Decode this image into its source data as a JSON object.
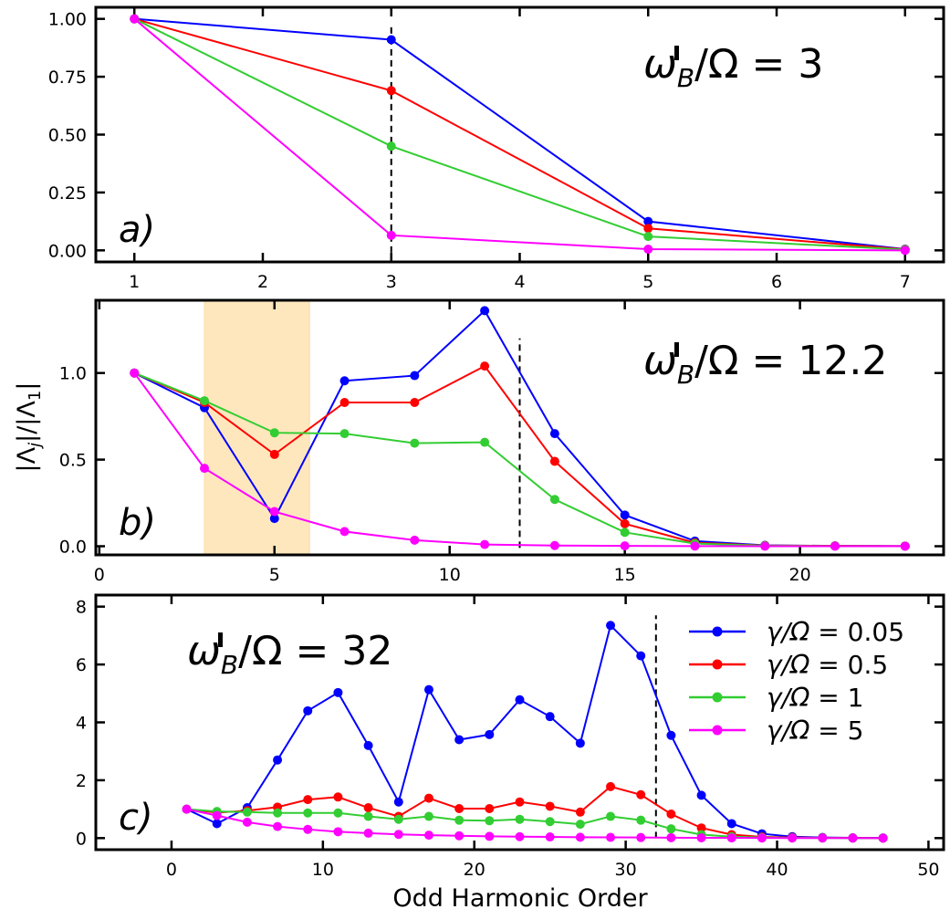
{
  "colors": {
    "blue": "#0000ff",
    "red": "#ff0000",
    "green": "#32cd32",
    "magenta": "#ff00ff",
    "band": "#ffe0a8"
  },
  "figure": {
    "ylabel_left": "|Λ",
    "ylabel_sub": "j",
    "ylabel_mid": "|/|Λ",
    "ylabel_sub2": "1",
    "ylabel_right": "|",
    "xlabel": "Odd Harmonic Order"
  },
  "legend": {
    "label_prefix": "γ/Ω =",
    "entries": [
      {
        "name": "0.05",
        "color": "#0000ff"
      },
      {
        "name": "0.5",
        "color": "#ff0000"
      },
      {
        "name": "1",
        "color": "#32cd32"
      },
      {
        "name": "5",
        "color": "#ff00ff"
      }
    ]
  },
  "chart_data": [
    {
      "type": "line",
      "panel_label": "a)",
      "annotation": {
        "lhs": "ω",
        "sub": "B",
        "mid": "/Ω = ",
        "value": "3"
      },
      "xlim": [
        0.7,
        7.3
      ],
      "ylim": [
        -0.05,
        1.05
      ],
      "xticks": [
        1,
        2,
        3,
        4,
        5,
        6,
        7
      ],
      "xtick_labels": [
        "1",
        "2",
        "3",
        "4",
        "5",
        "6",
        "7"
      ],
      "yticks": [
        0.0,
        0.25,
        0.5,
        0.75,
        1.0
      ],
      "ytick_labels": [
        "0.00",
        "0.25",
        "0.50",
        "0.75",
        "1.00"
      ],
      "cutoff_line": {
        "x": 3,
        "y_range": [
          -0.01,
          0.98
        ]
      },
      "x": [
        1,
        3,
        5,
        7
      ],
      "series": [
        {
          "name": "γ/Ω = 0.05",
          "color": "#0000ff",
          "values": [
            1.0,
            0.91,
            0.125,
            0.005
          ]
        },
        {
          "name": "γ/Ω = 0.5",
          "color": "#ff0000",
          "values": [
            1.0,
            0.69,
            0.095,
            0.004
          ]
        },
        {
          "name": "γ/Ω = 1",
          "color": "#32cd32",
          "values": [
            1.0,
            0.45,
            0.06,
            0.003
          ]
        },
        {
          "name": "γ/Ω = 5",
          "color": "#ff00ff",
          "values": [
            1.0,
            0.065,
            0.005,
            0.0
          ]
        }
      ]
    },
    {
      "type": "line",
      "panel_label": "b)",
      "annotation": {
        "lhs": "ω",
        "sub": "B",
        "mid": "/Ω = ",
        "value": "12.2"
      },
      "xlim": [
        -0.1,
        24.1
      ],
      "ylim": [
        -0.05,
        1.42
      ],
      "xticks": [
        0,
        5,
        10,
        15,
        20
      ],
      "xtick_labels": [
        "0",
        "5",
        "10",
        "15",
        "20"
      ],
      "yticks": [
        0.0,
        0.5,
        1.0
      ],
      "ytick_labels": [
        "0.0",
        "0.5",
        "1.0"
      ],
      "shaded_band": {
        "x_range": [
          3,
          6
        ]
      },
      "cutoff_line": {
        "x": 12,
        "y_range": [
          -0.01,
          1.2
        ]
      },
      "x": [
        1,
        3,
        5,
        7,
        9,
        11,
        13,
        15,
        17,
        19,
        21,
        23
      ],
      "series": [
        {
          "name": "γ/Ω = 0.05",
          "color": "#0000ff",
          "values": [
            1.0,
            0.8,
            0.16,
            0.955,
            0.985,
            1.36,
            0.65,
            0.18,
            0.03,
            0.005,
            0.002,
            0.001
          ]
        },
        {
          "name": "γ/Ω = 0.5",
          "color": "#ff0000",
          "values": [
            1.0,
            0.83,
            0.53,
            0.83,
            0.83,
            1.04,
            0.49,
            0.13,
            0.02,
            0.004,
            0.002,
            0.001
          ]
        },
        {
          "name": "γ/Ω = 1",
          "color": "#32cd32",
          "values": [
            1.0,
            0.84,
            0.655,
            0.65,
            0.595,
            0.6,
            0.27,
            0.08,
            0.015,
            0.003,
            0.001,
            0.0
          ]
        },
        {
          "name": "γ/Ω = 5",
          "color": "#ff00ff",
          "values": [
            1.0,
            0.45,
            0.2,
            0.085,
            0.035,
            0.01,
            0.004,
            0.002,
            0.001,
            0.0,
            0.0,
            0.0
          ]
        }
      ]
    },
    {
      "type": "line",
      "panel_label": "c)",
      "annotation": {
        "lhs": "ω",
        "sub": "B",
        "mid": "/Ω = ",
        "value": "32"
      },
      "xlim": [
        -5,
        51
      ],
      "ylim": [
        -0.4,
        8.4
      ],
      "xticks": [
        0,
        10,
        20,
        30,
        40,
        50
      ],
      "xtick_labels": [
        "0",
        "10",
        "20",
        "30",
        "40",
        "50"
      ],
      "yticks": [
        0,
        2,
        4,
        6,
        8
      ],
      "ytick_labels": [
        "0",
        "2",
        "4",
        "6",
        "8"
      ],
      "cutoff_line": {
        "x": 32,
        "y_range": [
          0.0,
          7.7
        ]
      },
      "x": [
        1,
        3,
        5,
        7,
        9,
        11,
        13,
        15,
        17,
        19,
        21,
        23,
        25,
        27,
        29,
        31,
        33,
        35,
        37,
        39,
        41,
        43,
        45,
        47
      ],
      "series": [
        {
          "name": "γ/Ω = 0.05",
          "color": "#0000ff",
          "values": [
            1.0,
            0.5,
            1.05,
            2.7,
            4.4,
            5.03,
            3.2,
            1.25,
            5.13,
            3.4,
            3.58,
            4.78,
            4.2,
            3.28,
            7.35,
            6.3,
            3.55,
            1.48,
            0.5,
            0.15,
            0.05,
            0.02,
            0.01,
            0.005
          ]
        },
        {
          "name": "γ/Ω = 0.5",
          "color": "#ff0000",
          "values": [
            1.0,
            0.88,
            0.95,
            1.07,
            1.33,
            1.42,
            1.05,
            0.75,
            1.38,
            1.02,
            1.02,
            1.25,
            1.1,
            0.9,
            1.78,
            1.5,
            0.83,
            0.35,
            0.12,
            0.04,
            0.02,
            0.01,
            0.005,
            0.0
          ]
        },
        {
          "name": "γ/Ω = 1",
          "color": "#32cd32",
          "values": [
            1.0,
            0.92,
            0.9,
            0.87,
            0.87,
            0.87,
            0.75,
            0.65,
            0.75,
            0.62,
            0.6,
            0.65,
            0.57,
            0.48,
            0.75,
            0.62,
            0.32,
            0.12,
            0.05,
            0.02,
            0.01,
            0.005,
            0.0,
            0.0
          ]
        },
        {
          "name": "γ/Ω = 5",
          "color": "#ff00ff",
          "values": [
            1.0,
            0.78,
            0.55,
            0.4,
            0.3,
            0.22,
            0.17,
            0.13,
            0.1,
            0.08,
            0.06,
            0.05,
            0.04,
            0.03,
            0.025,
            0.02,
            0.015,
            0.01,
            0.008,
            0.005,
            0.003,
            0.002,
            0.001,
            0.0
          ]
        }
      ]
    }
  ]
}
